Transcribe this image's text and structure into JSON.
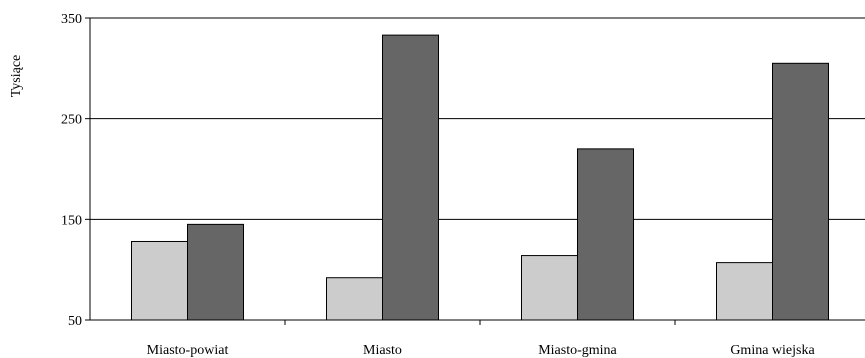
{
  "chart_data": {
    "type": "bar",
    "categories": [
      "Miasto-powiat",
      "Miasto",
      "Miasto-gmina",
      "Gmina wiejska"
    ],
    "series": [
      {
        "values": [
          128,
          92,
          114,
          107
        ],
        "color": "#cccccc"
      },
      {
        "values": [
          145,
          333,
          220,
          305
        ],
        "color": "#666666"
      }
    ],
    "ylabel": "Tysiące",
    "ylim": [
      50,
      350
    ],
    "yticks": [
      50,
      150,
      250,
      350
    ],
    "grid": true
  }
}
